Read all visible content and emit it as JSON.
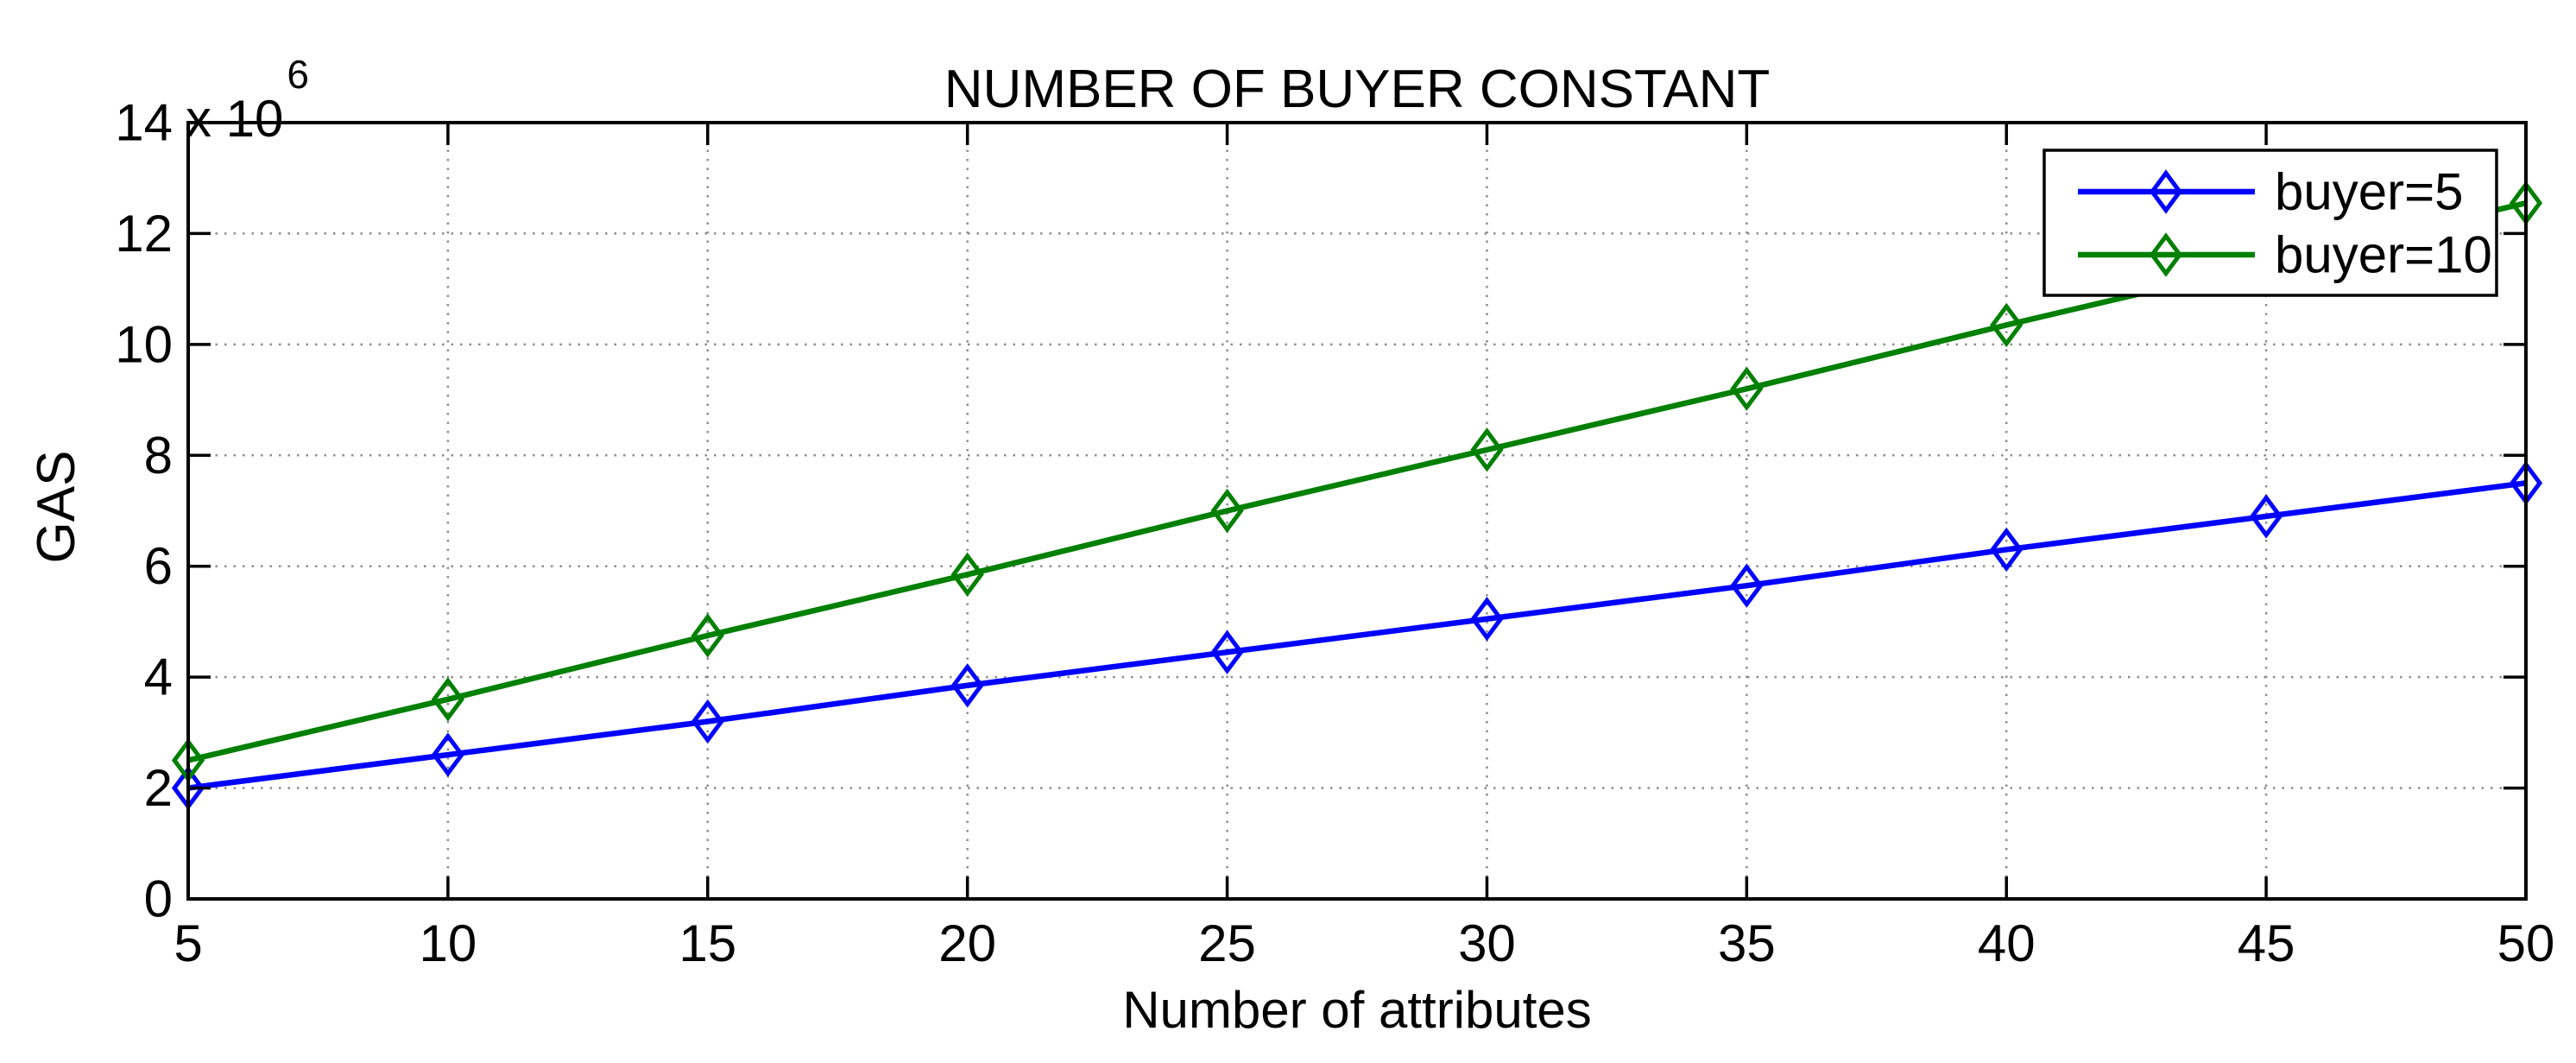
{
  "figure": {
    "title": "NUMBER OF BUYER CONSTANT",
    "y_axis_multiplier_base": "x 10",
    "y_axis_multiplier_exponent": "6"
  },
  "chart_data": {
    "type": "line",
    "title": "NUMBER OF BUYER CONSTANT",
    "xlabel": "Number of attributes",
    "ylabel": "GAS",
    "y_unit_multiplier": "x 10^6",
    "grid": true,
    "legend_position": "top-right",
    "xlim": [
      5,
      50
    ],
    "ylim": [
      0,
      14
    ],
    "x_ticks": [
      5,
      10,
      15,
      20,
      25,
      30,
      35,
      40,
      45,
      50
    ],
    "y_ticks": [
      0,
      2,
      4,
      6,
      8,
      10,
      12,
      14
    ],
    "x": [
      5,
      10,
      15,
      20,
      25,
      30,
      35,
      40,
      45,
      50
    ],
    "series": [
      {
        "name": "buyer=5",
        "color": "#0000FF",
        "marker": "diamond",
        "values": [
          2.0,
          2.6,
          3.2,
          3.85,
          4.45,
          5.05,
          5.65,
          6.3,
          6.9,
          7.5
        ]
      },
      {
        "name": "buyer=10",
        "color": "#008000",
        "marker": "diamond",
        "values": [
          2.5,
          3.6,
          4.75,
          5.85,
          7.0,
          8.1,
          9.2,
          10.35,
          11.45,
          12.55
        ]
      }
    ]
  }
}
